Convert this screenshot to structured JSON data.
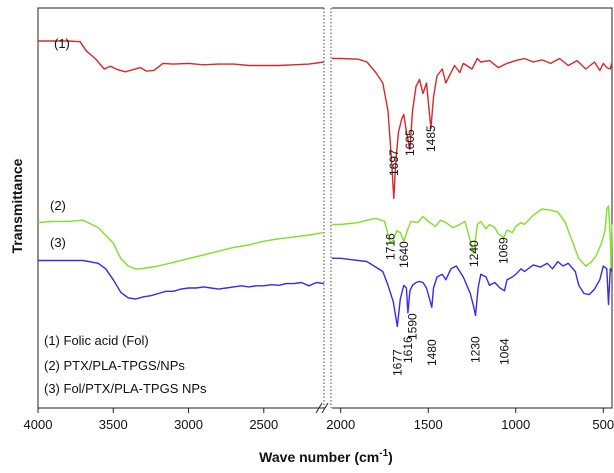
{
  "chart_data": {
    "type": "line",
    "xlabel": "Wave number (cm",
    "xlabel_sup": "-1",
    "xlabel_suffix": ")",
    "ylabel": "Transmittance",
    "x_axis": "reversed, broken between 2100 and 2050",
    "x_ticks": [
      "4000",
      "3500",
      "3000",
      "2500",
      "2000",
      "1500",
      "1000",
      "500"
    ],
    "y_ticks": [],
    "grid": false,
    "legend_position": "bottom-left",
    "legend": [
      "(1) Folic acid (Fol)",
      "(2) PTX/PLA-TPGS/NPs",
      "(3) Fol/PTX/PLA-TPGS NPs"
    ],
    "series": [
      {
        "name": "(1)",
        "color": "#d42a2a",
        "points": [
          [
            4000,
            0.3
          ],
          [
            3800,
            0.3
          ],
          [
            3720,
            0.31
          ],
          [
            3680,
            0.44
          ],
          [
            3620,
            0.55
          ],
          [
            3560,
            0.7
          ],
          [
            3520,
            0.66
          ],
          [
            3470,
            0.71
          ],
          [
            3420,
            0.74
          ],
          [
            3370,
            0.71
          ],
          [
            3320,
            0.68
          ],
          [
            3280,
            0.73
          ],
          [
            3230,
            0.72
          ],
          [
            3170,
            0.62
          ],
          [
            3100,
            0.63
          ],
          [
            3000,
            0.62
          ],
          [
            2900,
            0.64
          ],
          [
            2800,
            0.63
          ],
          [
            2700,
            0.63
          ],
          [
            2600,
            0.65
          ],
          [
            2500,
            0.65
          ],
          [
            2400,
            0.65
          ],
          [
            2300,
            0.64
          ],
          [
            2200,
            0.63
          ],
          [
            2100,
            0.6
          ],
          [
            2050,
            0.55
          ],
          [
            2000,
            0.55
          ],
          [
            1900,
            0.56
          ],
          [
            1850,
            0.6
          ],
          [
            1800,
            0.75
          ],
          [
            1760,
            0.9
          ],
          [
            1730,
            1.3
          ],
          [
            1710,
            2.0
          ],
          [
            1697,
            2.55
          ],
          [
            1685,
            2.0
          ],
          [
            1670,
            1.6
          ],
          [
            1650,
            1.4
          ],
          [
            1640,
            1.35
          ],
          [
            1625,
            1.6
          ],
          [
            1605,
            1.85
          ],
          [
            1590,
            1.3
          ],
          [
            1570,
            0.95
          ],
          [
            1550,
            0.85
          ],
          [
            1530,
            1.05
          ],
          [
            1510,
            0.9
          ],
          [
            1485,
            1.55
          ],
          [
            1470,
            1.1
          ],
          [
            1450,
            0.8
          ],
          [
            1420,
            0.7
          ],
          [
            1400,
            0.9
          ],
          [
            1380,
            0.8
          ],
          [
            1350,
            0.65
          ],
          [
            1320,
            0.75
          ],
          [
            1300,
            0.62
          ],
          [
            1250,
            0.7
          ],
          [
            1220,
            0.55
          ],
          [
            1200,
            0.6
          ],
          [
            1150,
            0.58
          ],
          [
            1100,
            0.68
          ],
          [
            1050,
            0.62
          ],
          [
            1000,
            0.58
          ],
          [
            950,
            0.55
          ],
          [
            900,
            0.6
          ],
          [
            850,
            0.57
          ],
          [
            800,
            0.62
          ],
          [
            750,
            0.55
          ],
          [
            700,
            0.65
          ],
          [
            650,
            0.58
          ],
          [
            600,
            0.7
          ],
          [
            550,
            0.6
          ],
          [
            520,
            0.72
          ],
          [
            500,
            0.62
          ],
          [
            480,
            0.68
          ],
          [
            460,
            0.7
          ],
          [
            450,
            0.6
          ]
        ]
      },
      {
        "name": "(2)",
        "color": "#7fe026",
        "points": [
          [
            4000,
            0.72
          ],
          [
            3900,
            0.7
          ],
          [
            3800,
            0.7
          ],
          [
            3700,
            0.68
          ],
          [
            3600,
            0.8
          ],
          [
            3500,
            1.05
          ],
          [
            3450,
            1.3
          ],
          [
            3400,
            1.42
          ],
          [
            3350,
            1.47
          ],
          [
            3300,
            1.46
          ],
          [
            3200,
            1.42
          ],
          [
            3100,
            1.36
          ],
          [
            3000,
            1.3
          ],
          [
            2900,
            1.24
          ],
          [
            2800,
            1.18
          ],
          [
            2700,
            1.12
          ],
          [
            2600,
            1.08
          ],
          [
            2500,
            1.02
          ],
          [
            2400,
            0.98
          ],
          [
            2300,
            0.95
          ],
          [
            2200,
            0.92
          ],
          [
            2100,
            0.88
          ],
          [
            2050,
            0.75
          ],
          [
            2000,
            0.75
          ],
          [
            1900,
            0.72
          ],
          [
            1850,
            0.68
          ],
          [
            1800,
            0.65
          ],
          [
            1750,
            0.7
          ],
          [
            1716,
            1.05
          ],
          [
            1700,
            1.0
          ],
          [
            1680,
            0.85
          ],
          [
            1660,
            0.88
          ],
          [
            1640,
            1.02
          ],
          [
            1620,
            0.85
          ],
          [
            1600,
            0.7
          ],
          [
            1560,
            0.72
          ],
          [
            1530,
            0.62
          ],
          [
            1500,
            0.7
          ],
          [
            1460,
            0.78
          ],
          [
            1430,
            0.68
          ],
          [
            1400,
            0.72
          ],
          [
            1360,
            0.8
          ],
          [
            1320,
            0.75
          ],
          [
            1290,
            0.7
          ],
          [
            1240,
            1.22
          ],
          [
            1220,
            0.75
          ],
          [
            1200,
            0.7
          ],
          [
            1170,
            0.82
          ],
          [
            1150,
            0.75
          ],
          [
            1120,
            0.8
          ],
          [
            1100,
            0.9
          ],
          [
            1069,
            0.96
          ],
          [
            1050,
            0.84
          ],
          [
            1020,
            0.88
          ],
          [
            1000,
            0.78
          ],
          [
            970,
            0.72
          ],
          [
            950,
            0.75
          ],
          [
            900,
            0.6
          ],
          [
            850,
            0.5
          ],
          [
            800,
            0.52
          ],
          [
            760,
            0.55
          ],
          [
            720,
            0.7
          ],
          [
            680,
            1.0
          ],
          [
            640,
            1.3
          ],
          [
            600,
            1.42
          ],
          [
            570,
            1.36
          ],
          [
            540,
            1.25
          ],
          [
            510,
            1.05
          ],
          [
            490,
            0.85
          ],
          [
            480,
            0.5
          ],
          [
            470,
            0.45
          ],
          [
            460,
            0.95
          ],
          [
            455,
            1.45
          ],
          [
            452,
            0.9
          ],
          [
            450,
            0.75
          ]
        ]
      },
      {
        "name": "(3)",
        "color": "#3a2ae6",
        "points": [
          [
            4000,
            1.1
          ],
          [
            3900,
            1.1
          ],
          [
            3800,
            1.1
          ],
          [
            3700,
            1.1
          ],
          [
            3600,
            1.15
          ],
          [
            3550,
            1.25
          ],
          [
            3500,
            1.45
          ],
          [
            3450,
            1.68
          ],
          [
            3400,
            1.78
          ],
          [
            3350,
            1.8
          ],
          [
            3300,
            1.76
          ],
          [
            3250,
            1.74
          ],
          [
            3200,
            1.7
          ],
          [
            3150,
            1.66
          ],
          [
            3100,
            1.66
          ],
          [
            3050,
            1.62
          ],
          [
            3000,
            1.6
          ],
          [
            2950,
            1.6
          ],
          [
            2900,
            1.58
          ],
          [
            2850,
            1.6
          ],
          [
            2800,
            1.62
          ],
          [
            2750,
            1.6
          ],
          [
            2700,
            1.58
          ],
          [
            2650,
            1.56
          ],
          [
            2600,
            1.58
          ],
          [
            2550,
            1.56
          ],
          [
            2500,
            1.56
          ],
          [
            2450,
            1.54
          ],
          [
            2400,
            1.55
          ],
          [
            2350,
            1.52
          ],
          [
            2300,
            1.52
          ],
          [
            2250,
            1.5
          ],
          [
            2200,
            1.56
          ],
          [
            2150,
            1.5
          ],
          [
            2100,
            1.52
          ],
          [
            2050,
            1.06
          ],
          [
            2000,
            1.06
          ],
          [
            1950,
            1.08
          ],
          [
            1900,
            1.1
          ],
          [
            1850,
            1.12
          ],
          [
            1800,
            1.22
          ],
          [
            1760,
            1.3
          ],
          [
            1730,
            1.55
          ],
          [
            1700,
            1.85
          ],
          [
            1677,
            2.3
          ],
          [
            1660,
            1.8
          ],
          [
            1640,
            1.55
          ],
          [
            1625,
            1.6
          ],
          [
            1616,
            2.05
          ],
          [
            1605,
            1.65
          ],
          [
            1590,
            1.55
          ],
          [
            1570,
            1.5
          ],
          [
            1550,
            1.48
          ],
          [
            1530,
            1.5
          ],
          [
            1510,
            1.6
          ],
          [
            1480,
            1.95
          ],
          [
            1470,
            1.6
          ],
          [
            1450,
            1.4
          ],
          [
            1420,
            1.35
          ],
          [
            1400,
            1.45
          ],
          [
            1370,
            1.25
          ],
          [
            1340,
            1.2
          ],
          [
            1300,
            1.4
          ],
          [
            1260,
            1.7
          ],
          [
            1240,
            1.95
          ],
          [
            1230,
            2.1
          ],
          [
            1215,
            1.6
          ],
          [
            1200,
            1.35
          ],
          [
            1170,
            1.4
          ],
          [
            1150,
            1.55
          ],
          [
            1120,
            1.5
          ],
          [
            1090,
            1.6
          ],
          [
            1064,
            1.65
          ],
          [
            1050,
            1.45
          ],
          [
            1020,
            1.4
          ],
          [
            1000,
            1.35
          ],
          [
            970,
            1.25
          ],
          [
            950,
            1.3
          ],
          [
            900,
            1.18
          ],
          [
            860,
            1.22
          ],
          [
            820,
            1.15
          ],
          [
            790,
            1.25
          ],
          [
            760,
            1.12
          ],
          [
            730,
            1.2
          ],
          [
            700,
            1.15
          ],
          [
            660,
            1.3
          ],
          [
            640,
            1.55
          ],
          [
            610,
            1.7
          ],
          [
            580,
            1.72
          ],
          [
            550,
            1.62
          ],
          [
            520,
            1.45
          ],
          [
            500,
            1.2
          ],
          [
            480,
            1.25
          ],
          [
            470,
            1.9
          ],
          [
            460,
            1.25
          ],
          [
            450,
            1.3
          ]
        ]
      }
    ],
    "annotations": [
      {
        "text": "(1)",
        "series": "(1)"
      },
      {
        "text": "(2)",
        "series": "(2)"
      },
      {
        "text": "(3)",
        "series": "(3)"
      },
      {
        "text": "1697",
        "x": 1697
      },
      {
        "text": "1605",
        "x": 1605
      },
      {
        "text": "1485",
        "x": 1485
      },
      {
        "text": "1716",
        "x": 1716
      },
      {
        "text": "1640",
        "x": 1640
      },
      {
        "text": "1240",
        "x": 1240
      },
      {
        "text": "1069",
        "x": 1069
      },
      {
        "text": "1677",
        "x": 1677
      },
      {
        "text": "1616",
        "x": 1616
      },
      {
        "text": "1590",
        "x": 1590
      },
      {
        "text": "1480",
        "x": 1480
      },
      {
        "text": "1230",
        "x": 1230
      },
      {
        "text": "1064",
        "x": 1064
      }
    ]
  }
}
